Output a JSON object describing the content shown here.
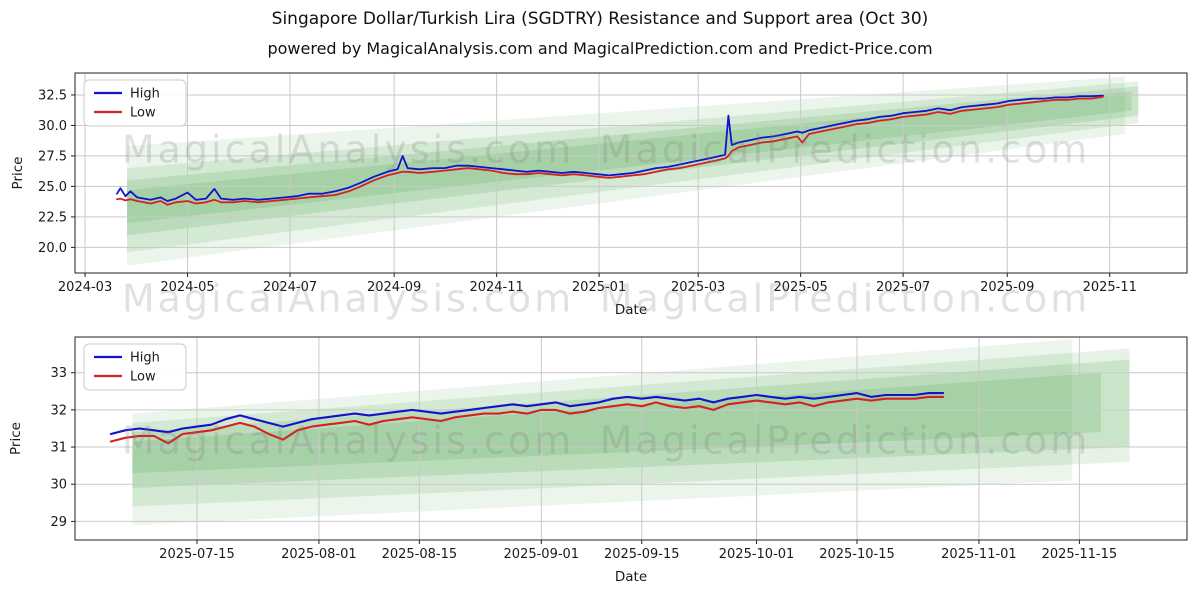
{
  "figure": {
    "title": "Singapore Dollar/Turkish Lira (SGDTRY) Resistance and Support area (Oct 30)",
    "subtitle": "powered by MagicalAnalysis.com and MagicalPrediction.com and Predict-Price.com",
    "watermarks": [
      "MagicalAnalysis.com",
      "MagicalPrediction.com"
    ],
    "colors": {
      "high": "#1212cc",
      "low": "#d42222",
      "band": "#3a9a3a",
      "grid": "#c9c9c9",
      "spine": "#222222",
      "watermark": "#777777"
    }
  },
  "chart_data": [
    {
      "type": "line",
      "title": "",
      "xlabel": "Date",
      "ylabel": "Price",
      "grid": true,
      "legend_position": "upper left",
      "legend": [
        "High",
        "Low"
      ],
      "xlim": [
        "2024-02-24",
        "2025-12-17"
      ],
      "ylim": [
        17.9,
        34.3
      ],
      "xticks": [
        {
          "date": "2024-03-01",
          "label": "2024-03"
        },
        {
          "date": "2024-05-01",
          "label": "2024-05"
        },
        {
          "date": "2024-07-01",
          "label": "2024-07"
        },
        {
          "date": "2024-09-01",
          "label": "2024-09"
        },
        {
          "date": "2024-11-01",
          "label": "2024-11"
        },
        {
          "date": "2025-01-01",
          "label": "2025-01"
        },
        {
          "date": "2025-03-01",
          "label": "2025-03"
        },
        {
          "date": "2025-05-01",
          "label": "2025-05"
        },
        {
          "date": "2025-07-01",
          "label": "2025-07"
        },
        {
          "date": "2025-09-01",
          "label": "2025-09"
        },
        {
          "date": "2025-11-01",
          "label": "2025-11"
        }
      ],
      "yticks": [
        {
          "value": 20.0,
          "label": "20.0"
        },
        {
          "value": 22.5,
          "label": "22.5"
        },
        {
          "value": 25.0,
          "label": "25.0"
        },
        {
          "value": 27.5,
          "label": "27.5"
        },
        {
          "value": 30.0,
          "label": "30.0"
        },
        {
          "value": 32.5,
          "label": "32.5"
        }
      ],
      "bands": [
        {
          "x0": "2024-03-26",
          "top0": 28.3,
          "bot0": 18.5,
          "x1": "2025-11-10",
          "top1": 34.0,
          "bot1": 29.3,
          "opacity": 0.1
        },
        {
          "x0": "2024-03-26",
          "top0": 26.5,
          "bot0": 19.6,
          "x1": "2025-11-18",
          "top1": 33.6,
          "bot1": 30.2,
          "opacity": 0.13
        },
        {
          "x0": "2024-03-26",
          "top0": 25.5,
          "bot0": 21.0,
          "x1": "2025-11-18",
          "top1": 33.2,
          "bot1": 30.8,
          "opacity": 0.16
        },
        {
          "x0": "2024-03-26",
          "top0": 24.7,
          "bot0": 22.0,
          "x1": "2025-11-14",
          "top1": 32.8,
          "bot1": 31.2,
          "opacity": 0.16
        }
      ],
      "x": [
        "2024-03-20",
        "2024-03-22",
        "2024-03-25",
        "2024-03-28",
        "2024-04-01",
        "2024-04-05",
        "2024-04-09",
        "2024-04-15",
        "2024-04-19",
        "2024-04-24",
        "2024-05-01",
        "2024-05-06",
        "2024-05-12",
        "2024-05-17",
        "2024-05-21",
        "2024-05-28",
        "2024-06-04",
        "2024-06-12",
        "2024-06-20",
        "2024-06-28",
        "2024-07-05",
        "2024-07-12",
        "2024-07-20",
        "2024-07-28",
        "2024-08-05",
        "2024-08-12",
        "2024-08-20",
        "2024-08-28",
        "2024-09-03",
        "2024-09-06",
        "2024-09-09",
        "2024-09-16",
        "2024-09-24",
        "2024-10-01",
        "2024-10-08",
        "2024-10-15",
        "2024-10-22",
        "2024-10-29",
        "2024-11-05",
        "2024-11-12",
        "2024-11-19",
        "2024-11-26",
        "2024-12-03",
        "2024-12-10",
        "2024-12-17",
        "2024-12-24",
        "2024-12-31",
        "2025-01-07",
        "2025-01-14",
        "2025-01-21",
        "2025-01-28",
        "2025-02-04",
        "2025-02-11",
        "2025-02-18",
        "2025-02-25",
        "2025-03-04",
        "2025-03-11",
        "2025-03-17",
        "2025-03-19",
        "2025-03-21",
        "2025-03-25",
        "2025-04-01",
        "2025-04-08",
        "2025-04-15",
        "2025-04-22",
        "2025-04-29",
        "2025-05-02",
        "2025-05-06",
        "2025-05-13",
        "2025-05-20",
        "2025-05-27",
        "2025-06-03",
        "2025-06-10",
        "2025-06-17",
        "2025-06-24",
        "2025-07-01",
        "2025-07-08",
        "2025-07-15",
        "2025-07-22",
        "2025-07-29",
        "2025-08-05",
        "2025-08-12",
        "2025-08-19",
        "2025-08-26",
        "2025-09-02",
        "2025-09-09",
        "2025-09-16",
        "2025-09-23",
        "2025-09-30",
        "2025-10-07",
        "2025-10-14",
        "2025-10-21",
        "2025-10-28"
      ],
      "series": [
        {
          "name": "High",
          "color": "#1212cc",
          "values": [
            24.4,
            24.85,
            24.2,
            24.6,
            24.1,
            24.0,
            23.9,
            24.1,
            23.8,
            24.0,
            24.5,
            23.9,
            24.0,
            24.8,
            24.0,
            23.9,
            24.0,
            23.9,
            24.0,
            24.1,
            24.2,
            24.4,
            24.4,
            24.6,
            24.9,
            25.3,
            25.8,
            26.2,
            26.4,
            27.5,
            26.5,
            26.4,
            26.5,
            26.5,
            26.7,
            26.7,
            26.6,
            26.5,
            26.4,
            26.3,
            26.2,
            26.3,
            26.2,
            26.1,
            26.2,
            26.1,
            26.0,
            25.9,
            26.0,
            26.1,
            26.3,
            26.5,
            26.6,
            26.8,
            27.0,
            27.2,
            27.4,
            27.6,
            30.8,
            28.4,
            28.6,
            28.8,
            29.0,
            29.1,
            29.3,
            29.5,
            29.4,
            29.6,
            29.8,
            30.0,
            30.2,
            30.4,
            30.5,
            30.7,
            30.8,
            31.0,
            31.1,
            31.2,
            31.4,
            31.25,
            31.5,
            31.6,
            31.7,
            31.8,
            32.0,
            32.1,
            32.2,
            32.2,
            32.3,
            32.3,
            32.4,
            32.4,
            32.45
          ]
        },
        {
          "name": "Low",
          "color": "#d42222",
          "values": [
            23.95,
            24.0,
            23.85,
            23.95,
            23.8,
            23.7,
            23.6,
            23.8,
            23.5,
            23.7,
            23.8,
            23.6,
            23.7,
            23.9,
            23.7,
            23.7,
            23.8,
            23.7,
            23.8,
            23.9,
            24.0,
            24.1,
            24.2,
            24.3,
            24.6,
            25.0,
            25.5,
            25.9,
            26.1,
            26.2,
            26.2,
            26.1,
            26.2,
            26.3,
            26.4,
            26.5,
            26.4,
            26.3,
            26.1,
            26.0,
            26.0,
            26.1,
            26.0,
            25.9,
            26.0,
            25.9,
            25.8,
            25.7,
            25.8,
            25.9,
            26.0,
            26.2,
            26.4,
            26.5,
            26.7,
            26.9,
            27.1,
            27.3,
            27.5,
            27.9,
            28.2,
            28.4,
            28.6,
            28.7,
            28.9,
            29.1,
            28.6,
            29.3,
            29.5,
            29.7,
            29.9,
            30.1,
            30.2,
            30.4,
            30.5,
            30.7,
            30.8,
            30.9,
            31.1,
            30.95,
            31.2,
            31.3,
            31.4,
            31.5,
            31.7,
            31.8,
            31.9,
            32.0,
            32.1,
            32.1,
            32.2,
            32.2,
            32.35
          ]
        }
      ]
    },
    {
      "type": "line",
      "title": "",
      "xlabel": "Date",
      "ylabel": "Price",
      "grid": true,
      "legend_position": "upper left",
      "legend": [
        "High",
        "Low"
      ],
      "xlim": [
        "2025-06-28",
        "2025-11-30"
      ],
      "ylim": [
        28.5,
        33.96
      ],
      "xticks": [
        {
          "date": "2025-07-15",
          "label": "2025-07-15"
        },
        {
          "date": "2025-08-01",
          "label": "2025-08-01"
        },
        {
          "date": "2025-08-15",
          "label": "2025-08-15"
        },
        {
          "date": "2025-09-01",
          "label": "2025-09-01"
        },
        {
          "date": "2025-09-15",
          "label": "2025-09-15"
        },
        {
          "date": "2025-10-01",
          "label": "2025-10-01"
        },
        {
          "date": "2025-10-15",
          "label": "2025-10-15"
        },
        {
          "date": "2025-11-01",
          "label": "2025-11-01"
        },
        {
          "date": "2025-11-15",
          "label": "2025-11-15"
        }
      ],
      "yticks": [
        {
          "value": 29,
          "label": "29"
        },
        {
          "value": 30,
          "label": "30"
        },
        {
          "value": 31,
          "label": "31"
        },
        {
          "value": 32,
          "label": "32"
        },
        {
          "value": 33,
          "label": "33"
        }
      ],
      "bands": [
        {
          "x0": "2025-07-06",
          "top0": 31.9,
          "bot0": 28.9,
          "x1": "2025-11-14",
          "top1": 33.9,
          "bot1": 30.1,
          "opacity": 0.1
        },
        {
          "x0": "2025-07-06",
          "top0": 31.65,
          "bot0": 29.4,
          "x1": "2025-11-22",
          "top1": 33.65,
          "bot1": 30.6,
          "opacity": 0.13
        },
        {
          "x0": "2025-07-06",
          "top0": 31.4,
          "bot0": 29.9,
          "x1": "2025-11-22",
          "top1": 33.35,
          "bot1": 31.0,
          "opacity": 0.16
        },
        {
          "x0": "2025-07-06",
          "top0": 31.15,
          "bot0": 30.3,
          "x1": "2025-11-18",
          "top1": 33.0,
          "bot1": 31.4,
          "opacity": 0.16
        }
      ],
      "x": [
        "2025-07-03",
        "2025-07-05",
        "2025-07-07",
        "2025-07-09",
        "2025-07-11",
        "2025-07-13",
        "2025-07-15",
        "2025-07-17",
        "2025-07-19",
        "2025-07-21",
        "2025-07-23",
        "2025-07-25",
        "2025-07-27",
        "2025-07-29",
        "2025-07-31",
        "2025-08-02",
        "2025-08-04",
        "2025-08-06",
        "2025-08-08",
        "2025-08-10",
        "2025-08-12",
        "2025-08-14",
        "2025-08-16",
        "2025-08-18",
        "2025-08-20",
        "2025-08-22",
        "2025-08-24",
        "2025-08-26",
        "2025-08-28",
        "2025-08-30",
        "2025-09-01",
        "2025-09-03",
        "2025-09-05",
        "2025-09-07",
        "2025-09-09",
        "2025-09-11",
        "2025-09-13",
        "2025-09-15",
        "2025-09-17",
        "2025-09-19",
        "2025-09-21",
        "2025-09-23",
        "2025-09-25",
        "2025-09-27",
        "2025-09-29",
        "2025-10-01",
        "2025-10-03",
        "2025-10-05",
        "2025-10-07",
        "2025-10-09",
        "2025-10-11",
        "2025-10-13",
        "2025-10-15",
        "2025-10-17",
        "2025-10-19",
        "2025-10-21",
        "2025-10-23",
        "2025-10-25",
        "2025-10-27"
      ],
      "series": [
        {
          "name": "High",
          "color": "#1212cc",
          "values": [
            31.35,
            31.45,
            31.5,
            31.45,
            31.4,
            31.5,
            31.55,
            31.6,
            31.75,
            31.85,
            31.75,
            31.65,
            31.55,
            31.65,
            31.75,
            31.8,
            31.85,
            31.9,
            31.85,
            31.9,
            31.95,
            32.0,
            31.95,
            31.9,
            31.95,
            32.0,
            32.05,
            32.1,
            32.15,
            32.1,
            32.15,
            32.2,
            32.1,
            32.15,
            32.2,
            32.3,
            32.35,
            32.3,
            32.35,
            32.3,
            32.25,
            32.3,
            32.2,
            32.3,
            32.35,
            32.4,
            32.35,
            32.3,
            32.35,
            32.3,
            32.35,
            32.4,
            32.45,
            32.35,
            32.4,
            32.4,
            32.4,
            32.45,
            32.45
          ]
        },
        {
          "name": "Low",
          "color": "#d42222",
          "values": [
            31.15,
            31.25,
            31.3,
            31.3,
            31.1,
            31.35,
            31.4,
            31.45,
            31.55,
            31.65,
            31.55,
            31.35,
            31.2,
            31.45,
            31.55,
            31.6,
            31.65,
            31.7,
            31.6,
            31.7,
            31.75,
            31.8,
            31.75,
            31.7,
            31.8,
            31.85,
            31.9,
            31.9,
            31.95,
            31.9,
            32.0,
            32.0,
            31.9,
            31.95,
            32.05,
            32.1,
            32.15,
            32.1,
            32.2,
            32.1,
            32.05,
            32.1,
            32.0,
            32.15,
            32.2,
            32.25,
            32.2,
            32.15,
            32.2,
            32.1,
            32.2,
            32.25,
            32.3,
            32.25,
            32.3,
            32.3,
            32.3,
            32.35,
            32.35
          ]
        }
      ]
    }
  ]
}
